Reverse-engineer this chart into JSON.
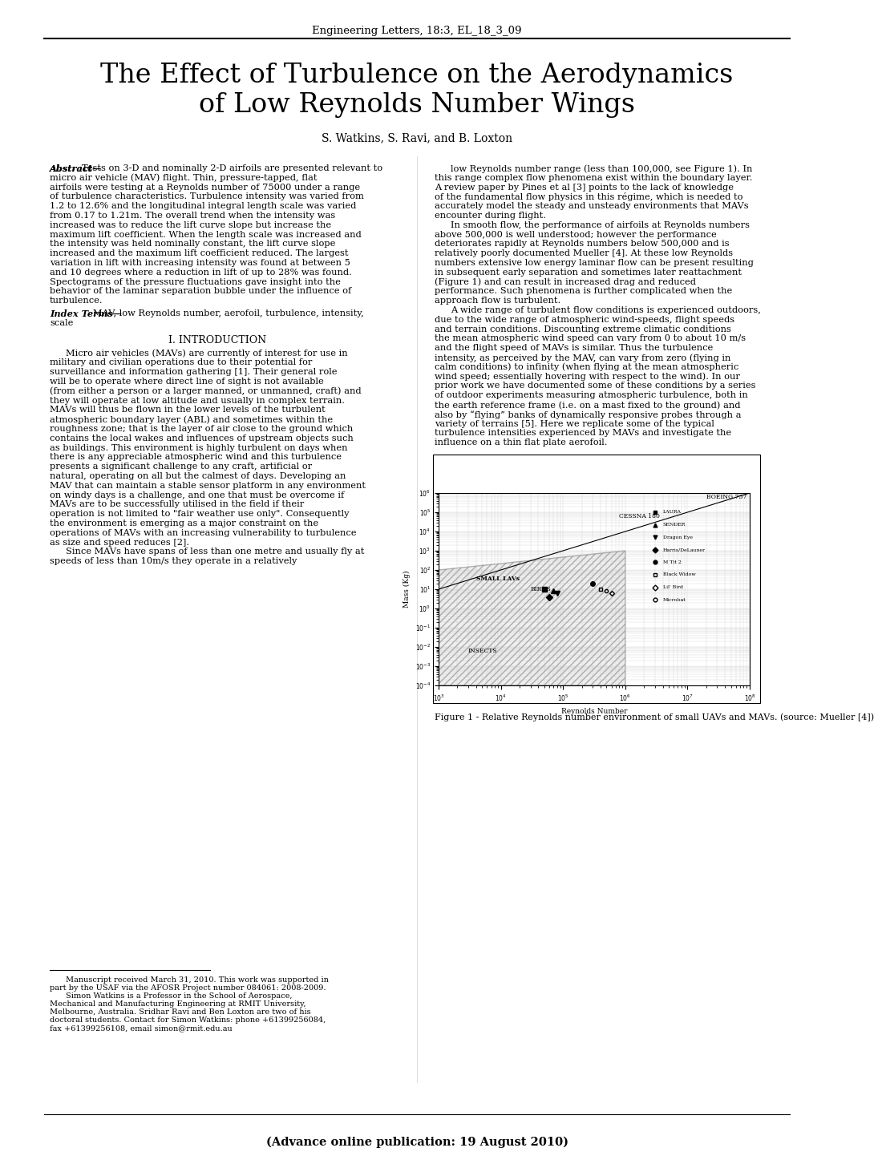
{
  "header": "Engineering Letters, 18:3, EL_18_3_09",
  "title_line1": "The Effect of Turbulence on the Aerodynamics",
  "title_line2": "of Low Reynolds Number Wings",
  "authors": "S. Watkins, S. Ravi, and B. Loxton",
  "abstract_label": "Abstract",
  "abstract_text": "Tests on 3-D and nominally 2-D airfoils are presented relevant to micro air vehicle (MAV) flight.  Thin, pressure-tapped, flat airfoils were testing at a Reynolds number of 75000 under a range of turbulence characteristics. Turbulence intensity was varied from 1.2 to 12.6% and the longitudinal integral length scale was varied from 0.17 to 1.21m. The overall trend when the intensity was increased was to reduce the lift curve slope but increase the maximum lift coefficient.  When the length scale was increased and the intensity was held nominally constant, the lift curve slope increased and the maximum lift coefficient reduced.  The largest variation in lift with increasing intensity was found at between 5 and 10 degrees where a reduction in lift of up to 28% was found. Spectograms of the pressure fluctuations gave insight into the behavior of the laminar separation bubble under the influence of turbulence.",
  "index_terms_label": "Index Terms",
  "index_terms_text": "MAV, low Reynolds number, aerofoil, turbulence, intensity, scale",
  "section1_title": "I. INTRODUCTION",
  "intro_text": "Micro air vehicles (MAVs) are currently of interest for use in military and civilian operations due to their potential for surveillance and information gathering [1].  Their general role will be to operate where direct line of sight is not available (from either a person or a larger manned, or unmanned, craft) and they will operate at low altitude and usually in complex terrain.  MAVs will thus be flown in the lower levels of the turbulent atmospheric boundary layer (ABL) and sometimes within the roughness zone; that is the layer of air close to the ground which contains the local wakes and influences of upstream objects such as buildings. This environment is highly turbulent on days when there is any appreciable atmospheric wind and this turbulence presents a significant challenge to any craft, artificial or natural, operating on all but the calmest of days. Developing an MAV that can maintain a stable sensor platform in any environment on windy days is a challenge, and one that must be overcome if MAVs are to be successfully utilised in the field if their operation is not limited to \"fair weather use only\". Consequently the environment is emerging as a major constraint on the operations of MAVs with an increasing vulnerability to turbulence as size and speed reduces [2].\n    Since MAVs have spans of less than one metre and usually fly at speeds of less than 10m/s they operate in a relatively",
  "right_col_text": "low Reynolds number range (less than 100,000, see Figure 1). In this range complex flow phenomena exist within the boundary layer. A review paper by Pines et al [3] points to the lack of knowledge of the fundamental flow physics in this régime, which is needed to accurately model the steady and unsteady environments that MAVs encounter during flight.\n    In smooth flow, the performance of airfoils at Reynolds numbers above 500,000 is well understood; however the performance deteriorates rapidly at Reynolds numbers below 500,000 and is relatively poorly documented Mueller [4]. At these low Reynolds numbers extensive low energy laminar flow can be present resulting in subsequent early separation and sometimes later reattachment (Figure 1) and can result in increased drag and reduced performance. Such phenomena is further complicated when the approach flow is turbulent.\n    A wide range of turbulent flow conditions is experienced outdoors, due to the wide range of atmospheric wind-speeds, flight speeds and terrain conditions. Discounting extreme climatic conditions the mean atmospheric wind speed can vary from 0 to about 10 m/s and the flight speed of MAVs is similar.  Thus the turbulence intensity, as perceived by the MAV, can vary from zero (flying in calm conditions) to infinity (when flying at the mean atmospheric wind speed; essentially hovering with respect to the wind).  In our prior work we have documented some of these conditions by a series of outdoor experiments measuring    atmospheric turbulence, both in the earth reference frame (i.e. on a mast fixed to the ground) and also by “flying” banks of dynamically responsive probes through a variety of terrains [5].  Here we replicate some of the typical turbulence intensities experienced by MAVs and investigate the influence on a thin flat plate aerofoil.",
  "footnote_text": "Manuscript received March 31, 2010. This work was supported in part by the USAF via the AFOSR Project number 084061: 2008-2009.\n    Simon Watkins is a Professor in the School of Aerospace, Mechanical and Manufacturing Engineering at RMIT University, Melbourne, Australia. Sridhar Ravi and Ben Loxton are two of his doctoral students.  Contact for Simon Watkins: phone +61399256084, fax +61399256108, email simon@rmit.edu.au",
  "figure_caption": "Figure 1 - Relative Reynolds number environment of small UAVs and MAVs. (source: Mueller [4])",
  "bottom_text": "(Advance online publication: 19 August 2010)"
}
